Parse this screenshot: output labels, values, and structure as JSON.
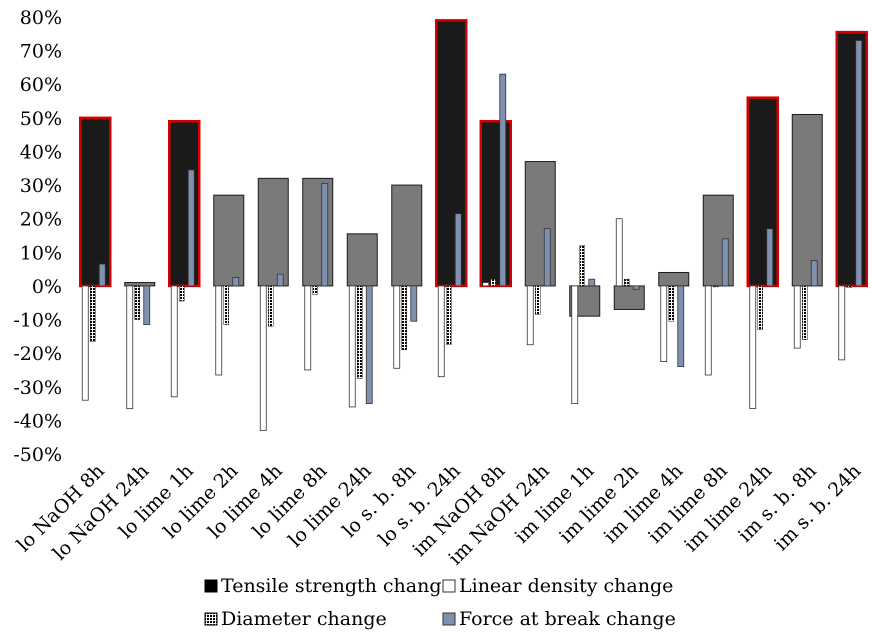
{
  "chart_data": {
    "type": "bar",
    "categories": [
      "lo NaOH 8h",
      "lo NaOH 24h",
      "lo lime 1h",
      "lo lime 2h",
      "lo lime 4h",
      "lo lime 8h",
      "lo lime 24h",
      "lo s. b. 8h",
      "lo s. b. 24h",
      "im NaOH 8h",
      "im NaOH 24h",
      "im lime 1h",
      "im lime 2h",
      "im lime 4h",
      "im lime 8h",
      "im lime 24h",
      "im s. b. 8h",
      "im s. b. 24h"
    ],
    "series": [
      {
        "name": "Tensile strength change",
        "values": [
          50,
          1,
          49,
          27,
          32,
          32,
          15.5,
          30,
          79,
          49,
          37,
          -9,
          -7,
          4,
          27,
          56,
          51,
          75.5
        ]
      },
      {
        "name": "Linear density change",
        "values": [
          -34,
          -36.5,
          -33,
          -26.5,
          -43,
          -25,
          -36,
          -24.5,
          -27,
          1,
          -17.5,
          -35,
          20,
          -22.5,
          -26.5,
          -36.5,
          -18.5,
          -22
        ]
      },
      {
        "name": "Diameter change",
        "values": [
          -16.5,
          -10,
          -4.5,
          -11.5,
          -12,
          -2.5,
          -27.5,
          -19,
          -17.5,
          2,
          -8.5,
          12,
          2,
          -10.5,
          0,
          -13,
          -16,
          -0.5
        ]
      },
      {
        "name": "Force at break change",
        "values": [
          6.5,
          -11.5,
          34.5,
          2.5,
          3.5,
          30.5,
          -35,
          -10.5,
          21.5,
          63,
          17,
          2,
          -1,
          -24,
          14,
          17,
          7.5,
          73
        ]
      }
    ],
    "highlighted_tensile": [
      true,
      false,
      true,
      false,
      false,
      false,
      false,
      false,
      true,
      true,
      false,
      false,
      false,
      false,
      false,
      true,
      false,
      true
    ],
    "tensile_fill": [
      "#1a1a1a",
      "#7a7a7a",
      "#1a1a1a",
      "#7a7a7a",
      "#7a7a7a",
      "#7a7a7a",
      "#7a7a7a",
      "#7a7a7a",
      "#1a1a1a",
      "#1a1a1a",
      "#7a7a7a",
      "#7a7a7a",
      "#7a7a7a",
      "#7a7a7a",
      "#7a7a7a",
      "#1a1a1a",
      "#7a7a7a",
      "#1a1a1a"
    ],
    "y_ticks": [
      "80%",
      "70%",
      "60%",
      "50%",
      "40%",
      "30%",
      "20%",
      "10%",
      "0%",
      "-10%",
      "-20%",
      "-30%",
      "-40%",
      "-50%"
    ],
    "ylim": [
      -50,
      80
    ],
    "grid": false,
    "legend_position": "bottom",
    "colors": {
      "tensile_dark": "#1a1a1a",
      "tensile_gray": "#7a7a7a",
      "highlight_border": "#d40000",
      "linear_density": "#ffffff",
      "force_at_break": "#8090b0"
    },
    "legend": [
      {
        "label": "Tensile strength change",
        "swatch": "solid-black"
      },
      {
        "label": "Linear density change",
        "swatch": "white"
      },
      {
        "label": "Diameter change",
        "swatch": "dotted"
      },
      {
        "label": "Force at break change",
        "swatch": "blue-gray"
      }
    ]
  }
}
